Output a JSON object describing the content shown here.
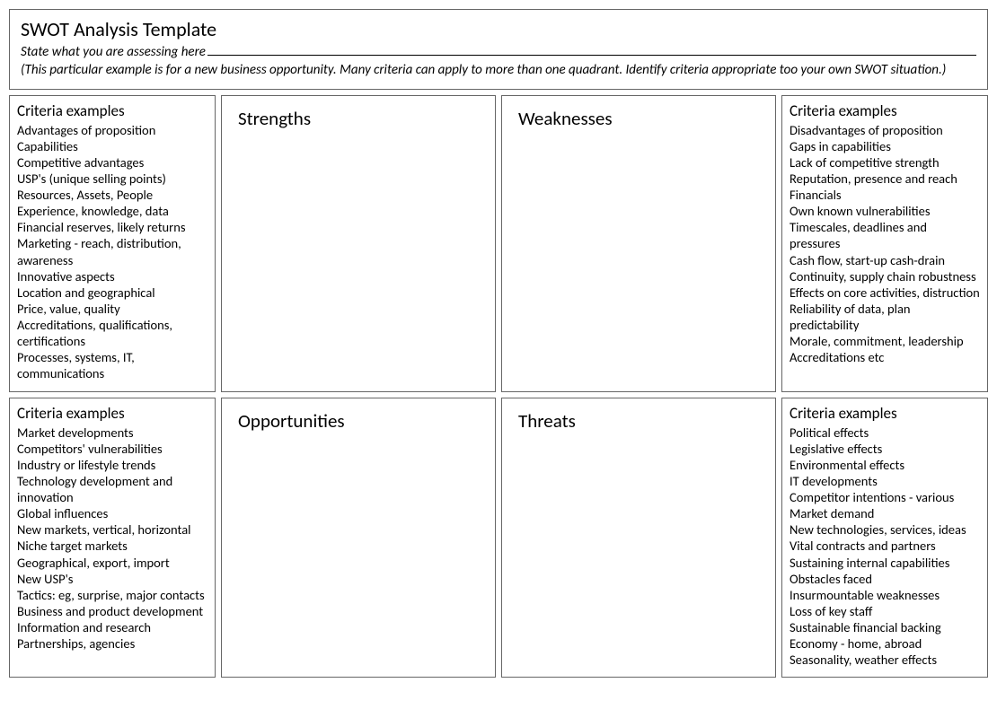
{
  "header": {
    "title": "SWOT Analysis Template",
    "subtitle": "State what you are assessing here",
    "note": "(This particular example is for a new business opportunity. Many criteria can apply to more than one quadrant. Identify criteria appropriate too your own SWOT situation.)"
  },
  "criteria_heading": "Criteria examples",
  "quadrants": {
    "strengths": "Strengths",
    "weaknesses": "Weaknesses",
    "opportunities": "Opportunities",
    "threats": "Threats"
  },
  "criteria": {
    "strengths": [
      "Advantages of proposition",
      "Capabilities",
      "Competitive advantages",
      "USP's (unique selling points)",
      "Resources, Assets, People",
      "Experience, knowledge, data",
      "Financial reserves, likely returns",
      "Marketing -  reach, distribution, awareness",
      "Innovative aspects",
      "Location and geographical",
      "Price, value, quality",
      "Accreditations, qualifications, certifications",
      "Processes, systems, IT, communications"
    ],
    "weaknesses": [
      "Disadvantages of proposition",
      "Gaps in capabilities",
      "Lack of competitive strength",
      "Reputation, presence and reach",
      "Financials",
      "Own known vulnerabilities",
      "Timescales, deadlines and pressures",
      "Cash flow, start-up cash-drain",
      "Continuity, supply chain robustness",
      "Effects on core activities, distruction",
      "Reliability of data, plan predictability",
      "Morale, commitment, leadership",
      "Accreditations etc"
    ],
    "opportunities": [
      "Market developments",
      "Competitors' vulnerabilities",
      "Industry or lifestyle trends",
      "Technology development and innovation",
      "Global influences",
      "New markets, vertical, horizontal",
      "Niche target markets",
      "Geographical, export, import",
      "New USP's",
      "Tactics: eg, surprise, major contacts",
      "Business and product development",
      "Information and research",
      "Partnerships, agencies"
    ],
    "threats": [
      "Political effects",
      "Legislative effects",
      "Environmental effects",
      "IT developments",
      "Competitor intentions - various",
      "Market demand",
      "New technologies, services, ideas",
      "Vital contracts and partners",
      "Sustaining internal capabilities",
      "Obstacles faced",
      "Insurmountable weaknesses",
      "Loss of key staff",
      "Sustainable financial backing",
      "Economy - home, abroad",
      "Seasonality, weather effects"
    ]
  }
}
